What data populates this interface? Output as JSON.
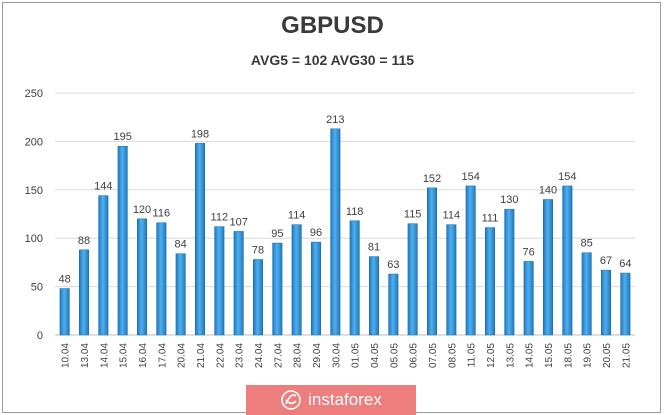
{
  "chart_data": {
    "type": "bar",
    "title": "GBPUSD",
    "subtitle": "AVG5 = 102 AVG30 = 115",
    "categories": [
      "10.04",
      "13.04",
      "14.04",
      "15.04",
      "16.04",
      "17.04",
      "20.04",
      "21.04",
      "22.04",
      "23.04",
      "24.04",
      "27.04",
      "28.04",
      "29.04",
      "30.04",
      "01.05",
      "04.05",
      "05.05",
      "06.05",
      "07.05",
      "08.05",
      "11.05",
      "12.05",
      "13.05",
      "14.05",
      "15.05",
      "18.05",
      "19.05",
      "20.05",
      "21.05"
    ],
    "values": [
      48,
      88,
      144,
      195,
      120,
      116,
      84,
      198,
      112,
      107,
      78,
      95,
      114,
      96,
      213,
      118,
      81,
      63,
      115,
      152,
      114,
      154,
      111,
      130,
      76,
      140,
      154,
      85,
      67,
      64
    ],
    "ylim": [
      0,
      250
    ],
    "yticks": [
      0,
      50,
      100,
      150,
      200,
      250
    ],
    "grid": true,
    "bar_color": "#2e8fd6"
  },
  "watermark": {
    "text": "instaforex",
    "background": "#ee7d7d"
  }
}
